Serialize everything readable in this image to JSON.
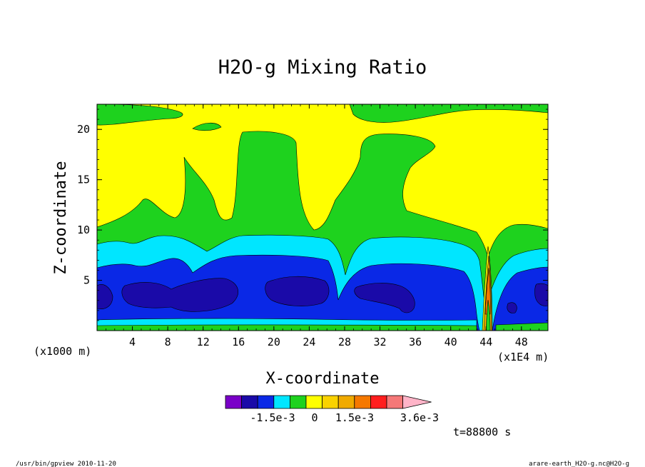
{
  "chart_data": {
    "type": "contour",
    "title": "H2O-g Mixing Ratio",
    "xlabel": "X-coordinate",
    "ylabel": "Z-coordinate",
    "x_unit": "(x1000 m)",
    "x_unit2": "(x1E4 m)",
    "x_ticks": [
      "4",
      "8",
      "12",
      "16",
      "20",
      "24",
      "28",
      "32",
      "36",
      "40",
      "44",
      "48"
    ],
    "y_ticks": [
      "5",
      "10",
      "15",
      "20"
    ],
    "xlim": [
      0,
      51
    ],
    "ylim": [
      0,
      22.5
    ],
    "colorbar": {
      "colors": [
        "#7a00c8",
        "#1a0aa8",
        "#0a28e6",
        "#00e6ff",
        "#1ed21e",
        "#ffff00",
        "#fad200",
        "#f0aa00",
        "#f57800",
        "#ff1e1e",
        "#f57878",
        "#ffb4c8"
      ],
      "labels": [
        "-1.5e-3",
        "0",
        "1.5e-3",
        "3.6e-3"
      ]
    },
    "time_label": "t=88800 s",
    "footer_left": "/usr/bin/gpview  2010-11-20",
    "footer_right": "arare-earth_H2O-g.nc@H2O-g"
  }
}
